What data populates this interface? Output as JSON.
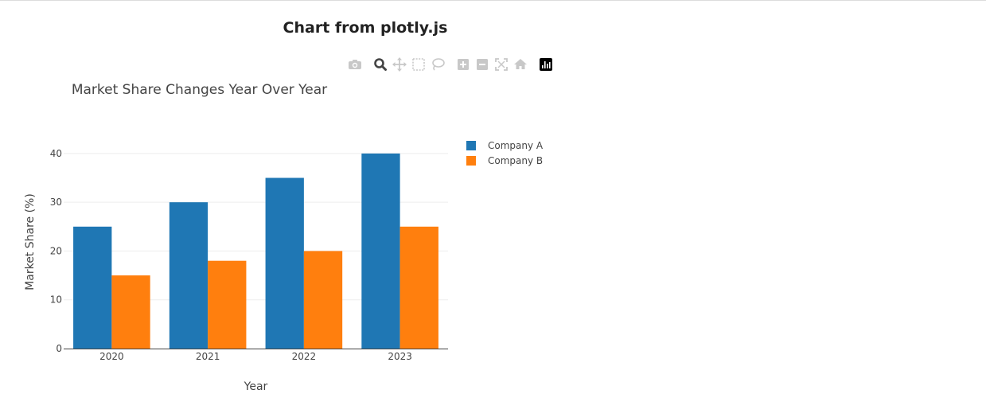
{
  "page": {
    "title": "Chart from plotly.js"
  },
  "modebar": {
    "buttons": [
      {
        "name": "camera-icon",
        "label": "Download plot as a png"
      },
      {
        "name": "zoom-icon",
        "label": "Zoom"
      },
      {
        "name": "pan-icon",
        "label": "Pan"
      },
      {
        "name": "box-select-icon",
        "label": "Box Select"
      },
      {
        "name": "lasso-select-icon",
        "label": "Lasso Select"
      },
      {
        "name": "zoom-in-icon",
        "label": "Zoom in"
      },
      {
        "name": "zoom-out-icon",
        "label": "Zoom out"
      },
      {
        "name": "autoscale-icon",
        "label": "Autoscale"
      },
      {
        "name": "reset-axes-icon",
        "label": "Reset axes"
      },
      {
        "name": "plotly-logo-icon",
        "label": "Produced with Plotly"
      }
    ],
    "active_color": "#444444",
    "inactive_color": "#c8c8c8"
  },
  "chart_data": {
    "type": "bar",
    "title": "Market Share Changes Year Over Year",
    "xlabel": "Year",
    "ylabel": "Market Share (%)",
    "categories": [
      "2020",
      "2021",
      "2022",
      "2023"
    ],
    "series": [
      {
        "name": "Company A",
        "values": [
          25,
          30,
          35,
          40
        ],
        "color": "#1f77b4"
      },
      {
        "name": "Company B",
        "values": [
          15,
          18,
          20,
          25
        ],
        "color": "#ff7f0e"
      }
    ],
    "ylim": [
      0,
      42.1
    ],
    "yticks": [
      0,
      10,
      20,
      30,
      40
    ],
    "grid": true,
    "legend_position": "right"
  }
}
